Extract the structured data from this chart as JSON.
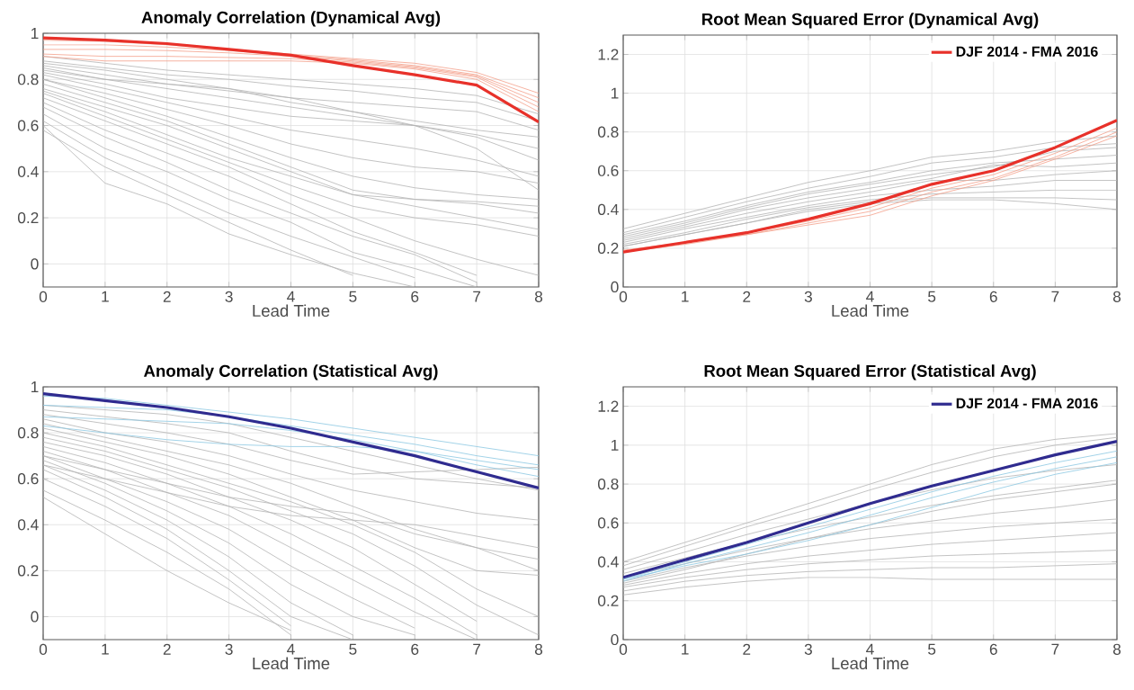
{
  "chart_data": [
    {
      "type": "line",
      "title": "Anomaly Correlation (Dynamical Avg)",
      "xlabel": "Lead Time",
      "x": [
        0,
        1,
        2,
        3,
        4,
        5,
        6,
        7,
        8
      ],
      "xlim": [
        0,
        8
      ],
      "xticks": [
        0,
        1,
        2,
        3,
        4,
        5,
        6,
        7,
        8
      ],
      "ylim": [
        -0.1,
        1
      ],
      "yticks": [
        0,
        0.2,
        0.4,
        0.6,
        0.8,
        1
      ],
      "grid": true,
      "legend": false,
      "series": [
        {
          "color": "#b4b4b4",
          "values": [
            0.9,
            0.87,
            0.84,
            0.82,
            0.8,
            0.78,
            0.76,
            0.73,
            0.65
          ]
        },
        {
          "color": "#b4b4b4",
          "values": [
            0.88,
            0.85,
            0.82,
            0.8,
            0.77,
            0.75,
            0.72,
            0.7,
            0.62
          ]
        },
        {
          "color": "#b4b4b4",
          "values": [
            0.86,
            0.82,
            0.78,
            0.75,
            0.72,
            0.7,
            0.68,
            0.66,
            0.58
          ]
        },
        {
          "color": "#b4b4b4",
          "values": [
            0.85,
            0.8,
            0.76,
            0.72,
            0.68,
            0.64,
            0.6,
            0.56,
            0.5
          ]
        },
        {
          "color": "#b4b4b4",
          "values": [
            0.83,
            0.78,
            0.72,
            0.68,
            0.64,
            0.62,
            0.6,
            0.55,
            0.45
          ]
        },
        {
          "color": "#b4b4b4",
          "values": [
            0.82,
            0.76,
            0.7,
            0.64,
            0.58,
            0.54,
            0.5,
            0.45,
            0.38
          ]
        },
        {
          "color": "#b4b4b4",
          "values": [
            0.8,
            0.74,
            0.67,
            0.6,
            0.52,
            0.46,
            0.42,
            0.4,
            0.35
          ]
        },
        {
          "color": "#b4b4b4",
          "values": [
            0.8,
            0.72,
            0.64,
            0.55,
            0.46,
            0.38,
            0.33,
            0.3,
            0.28
          ]
        },
        {
          "color": "#b4b4b4",
          "values": [
            0.78,
            0.7,
            0.62,
            0.52,
            0.42,
            0.32,
            0.28,
            0.27,
            0.25
          ]
        },
        {
          "color": "#b4b4b4",
          "values": [
            0.76,
            0.68,
            0.6,
            0.5,
            0.4,
            0.3,
            0.28,
            0.26,
            0.22
          ]
        },
        {
          "color": "#b4b4b4",
          "values": [
            0.75,
            0.66,
            0.56,
            0.46,
            0.38,
            0.3,
            0.25,
            0.2,
            0.15
          ]
        },
        {
          "color": "#b4b4b4",
          "values": [
            0.74,
            0.64,
            0.54,
            0.44,
            0.34,
            0.25,
            0.2,
            0.17,
            0.12
          ]
        },
        {
          "color": "#b4b4b4",
          "values": [
            0.72,
            0.62,
            0.52,
            0.42,
            0.3,
            0.2,
            0.1,
            0.02,
            -0.05
          ]
        },
        {
          "color": "#b4b4b4",
          "values": [
            0.7,
            0.58,
            0.48,
            0.38,
            0.26,
            0.14,
            0.05,
            -0.05,
            null
          ]
        },
        {
          "color": "#b4b4b4",
          "values": [
            0.68,
            0.55,
            0.44,
            0.32,
            0.22,
            0.12,
            0.04,
            -0.08,
            null
          ]
        },
        {
          "color": "#b4b4b4",
          "values": [
            0.65,
            0.5,
            0.4,
            0.28,
            0.18,
            0.05,
            -0.02,
            -0.1,
            null
          ]
        },
        {
          "color": "#b4b4b4",
          "values": [
            0.62,
            0.46,
            0.34,
            0.22,
            0.12,
            0.03,
            -0.06,
            null,
            null
          ]
        },
        {
          "color": "#b4b4b4",
          "values": [
            0.58,
            0.42,
            0.3,
            0.18,
            0.06,
            -0.05,
            null,
            null,
            null
          ]
        },
        {
          "color": "#b4b4b4",
          "values": [
            0.6,
            0.35,
            0.26,
            0.13,
            0.04,
            -0.04,
            -0.1,
            null,
            null
          ]
        },
        {
          "color": "#b4b4b4",
          "values": [
            0.84,
            0.8,
            0.78,
            0.76,
            0.72,
            0.66,
            0.6,
            0.5,
            0.32
          ]
        },
        {
          "color": "#b4b4b4",
          "values": [
            0.87,
            0.84,
            0.8,
            0.76,
            0.7,
            0.66,
            0.62,
            0.58,
            0.55
          ]
        },
        {
          "color": "#f4a08a",
          "values": [
            0.97,
            0.965,
            0.95,
            0.93,
            0.91,
            0.89,
            0.87,
            0.83,
            0.74
          ]
        },
        {
          "color": "#f4a08a",
          "values": [
            0.95,
            0.95,
            0.94,
            0.925,
            0.905,
            0.885,
            0.86,
            0.82,
            0.72
          ]
        },
        {
          "color": "#f4a08a",
          "values": [
            0.93,
            0.93,
            0.925,
            0.915,
            0.9,
            0.88,
            0.855,
            0.815,
            0.7
          ]
        },
        {
          "color": "#f4a08a",
          "values": [
            0.91,
            0.9,
            0.9,
            0.895,
            0.89,
            0.875,
            0.85,
            0.81,
            0.68
          ]
        },
        {
          "color": "#f4a08a",
          "values": [
            0.9,
            0.88,
            0.88,
            0.88,
            0.88,
            0.87,
            0.845,
            0.8,
            0.66
          ]
        },
        {
          "color": "#e8312a",
          "values": [
            0.98,
            0.97,
            0.955,
            0.93,
            0.905,
            0.86,
            0.82,
            0.775,
            0.615
          ]
        }
      ]
    },
    {
      "type": "line",
      "title": "Root Mean Squared Error (Dynamical Avg)",
      "xlabel": "Lead Time",
      "x": [
        0,
        1,
        2,
        3,
        4,
        5,
        6,
        7,
        8
      ],
      "xlim": [
        0,
        8
      ],
      "xticks": [
        0,
        1,
        2,
        3,
        4,
        5,
        6,
        7,
        8
      ],
      "ylim": [
        0,
        1.3
      ],
      "yticks": [
        0,
        0.2,
        0.4,
        0.6,
        0.8,
        1,
        1.2
      ],
      "grid": true,
      "legend": "top right",
      "series": [
        {
          "color": "#b4b4b4",
          "values": [
            0.3,
            0.38,
            0.46,
            0.54,
            0.6,
            0.67,
            0.7,
            0.75,
            0.78
          ]
        },
        {
          "color": "#b4b4b4",
          "values": [
            0.28,
            0.36,
            0.44,
            0.51,
            0.57,
            0.64,
            0.67,
            0.72,
            0.74
          ]
        },
        {
          "color": "#b4b4b4",
          "values": [
            0.27,
            0.34,
            0.42,
            0.49,
            0.54,
            0.6,
            0.64,
            0.66,
            0.68
          ]
        },
        {
          "color": "#b4b4b4",
          "values": [
            0.25,
            0.32,
            0.4,
            0.46,
            0.51,
            0.56,
            0.63,
            0.62,
            0.64
          ]
        },
        {
          "color": "#b4b4b4",
          "values": [
            0.24,
            0.31,
            0.38,
            0.44,
            0.49,
            0.55,
            0.55,
            0.58,
            0.6
          ]
        },
        {
          "color": "#b4b4b4",
          "values": [
            0.23,
            0.3,
            0.36,
            0.42,
            0.47,
            0.5,
            0.52,
            0.55,
            0.55
          ]
        },
        {
          "color": "#b4b4b4",
          "values": [
            0.22,
            0.28,
            0.35,
            0.41,
            0.45,
            0.48,
            0.49,
            0.5,
            0.5
          ]
        },
        {
          "color": "#b4b4b4",
          "values": [
            0.21,
            0.27,
            0.33,
            0.4,
            0.44,
            0.46,
            0.46,
            0.46,
            0.45
          ]
        },
        {
          "color": "#b4b4b4",
          "values": [
            0.21,
            0.27,
            0.33,
            0.39,
            0.43,
            0.45,
            0.45,
            0.43,
            0.4
          ]
        },
        {
          "color": "#b4b4b4",
          "values": [
            0.26,
            0.33,
            0.41,
            0.48,
            0.53,
            0.58,
            0.62,
            0.7,
            0.72
          ]
        },
        {
          "color": "#f4a08a",
          "values": [
            0.18,
            0.23,
            0.27,
            0.33,
            0.39,
            0.49,
            0.56,
            0.67,
            0.8
          ]
        },
        {
          "color": "#f4a08a",
          "values": [
            0.18,
            0.22,
            0.27,
            0.32,
            0.37,
            0.47,
            0.55,
            0.66,
            0.78
          ]
        },
        {
          "color": "#f4a08a",
          "values": [
            0.19,
            0.23,
            0.28,
            0.34,
            0.41,
            0.51,
            0.58,
            0.69,
            0.82
          ]
        },
        {
          "name": "DJF 2014 - FMA 2016",
          "color": "#e8312a",
          "values": [
            0.18,
            0.23,
            0.28,
            0.35,
            0.43,
            0.53,
            0.6,
            0.72,
            0.86
          ]
        }
      ]
    },
    {
      "type": "line",
      "title": "Anomaly Correlation (Statistical Avg)",
      "xlabel": "Lead Time",
      "x": [
        0,
        1,
        2,
        3,
        4,
        5,
        6,
        7,
        8
      ],
      "xlim": [
        0,
        8
      ],
      "xticks": [
        0,
        1,
        2,
        3,
        4,
        5,
        6,
        7,
        8
      ],
      "ylim": [
        -0.1,
        1
      ],
      "yticks": [
        0,
        0.2,
        0.4,
        0.6,
        0.8,
        1
      ],
      "grid": true,
      "legend": false,
      "series": [
        {
          "color": "#b4b4b4",
          "values": [
            0.92,
            0.9,
            0.88,
            0.84,
            0.78,
            0.72,
            0.66,
            0.6,
            0.55
          ]
        },
        {
          "color": "#b4b4b4",
          "values": [
            0.9,
            0.87,
            0.84,
            0.8,
            0.72,
            0.65,
            0.6,
            0.58,
            0.56
          ]
        },
        {
          "color": "#b4b4b4",
          "values": [
            0.88,
            0.84,
            0.8,
            0.75,
            0.68,
            0.62,
            0.63,
            0.64,
            0.65
          ]
        },
        {
          "color": "#b4b4b4",
          "values": [
            0.86,
            0.8,
            0.76,
            0.7,
            0.62,
            0.55,
            0.5,
            0.45,
            0.42
          ]
        },
        {
          "color": "#b4b4b4",
          "values": [
            0.84,
            0.78,
            0.72,
            0.66,
            0.58,
            0.48,
            0.38,
            0.3,
            0.25
          ]
        },
        {
          "color": "#b4b4b4",
          "values": [
            0.82,
            0.76,
            0.7,
            0.62,
            0.52,
            0.42,
            0.3,
            0.2,
            0.18
          ]
        },
        {
          "color": "#b4b4b4",
          "values": [
            0.8,
            0.74,
            0.66,
            0.58,
            0.5,
            0.4,
            0.28,
            0.12,
            0.0
          ]
        },
        {
          "color": "#b4b4b4",
          "values": [
            0.78,
            0.72,
            0.64,
            0.56,
            0.46,
            0.36,
            0.22,
            0.05,
            -0.08
          ]
        },
        {
          "color": "#b4b4b4",
          "values": [
            0.76,
            0.7,
            0.62,
            0.52,
            0.42,
            0.3,
            0.14,
            -0.02,
            null
          ]
        },
        {
          "color": "#b4b4b4",
          "values": [
            0.74,
            0.67,
            0.58,
            0.48,
            0.36,
            0.22,
            0.08,
            -0.08,
            null
          ]
        },
        {
          "color": "#b4b4b4",
          "values": [
            0.72,
            0.64,
            0.54,
            0.44,
            0.3,
            0.16,
            0.02,
            -0.1,
            null
          ]
        },
        {
          "color": "#b4b4b4",
          "values": [
            0.7,
            0.6,
            0.5,
            0.38,
            0.22,
            0.08,
            -0.05,
            null,
            null
          ]
        },
        {
          "color": "#b4b4b4",
          "values": [
            0.68,
            0.58,
            0.46,
            0.32,
            0.14,
            0.0,
            -0.08,
            null,
            null
          ]
        },
        {
          "color": "#b4b4b4",
          "values": [
            0.66,
            0.55,
            0.42,
            0.26,
            0.06,
            -0.08,
            null,
            null,
            null
          ]
        },
        {
          "color": "#b4b4b4",
          "values": [
            0.64,
            0.52,
            0.38,
            0.2,
            0.0,
            -0.1,
            null,
            null,
            null
          ]
        },
        {
          "color": "#b4b4b4",
          "values": [
            0.6,
            0.48,
            0.34,
            0.16,
            -0.04,
            null,
            null,
            null,
            null
          ]
        },
        {
          "color": "#b4b4b4",
          "values": [
            0.55,
            0.42,
            0.28,
            0.12,
            -0.08,
            null,
            null,
            null,
            null
          ]
        },
        {
          "color": "#b4b4b4",
          "values": [
            0.52,
            0.36,
            0.2,
            0.06,
            -0.06,
            null,
            null,
            null,
            null
          ]
        },
        {
          "color": "#b4b4b4",
          "values": [
            0.66,
            0.6,
            0.54,
            0.48,
            0.44,
            0.42,
            0.4,
            0.35,
            0.3
          ]
        },
        {
          "color": "#b4b4b4",
          "values": [
            0.7,
            0.64,
            0.58,
            0.52,
            0.48,
            0.45,
            0.36,
            0.3,
            0.2
          ]
        },
        {
          "color": "#8cc8e2",
          "values": [
            0.96,
            0.95,
            0.92,
            0.89,
            0.86,
            0.82,
            0.78,
            0.74,
            0.7
          ]
        },
        {
          "color": "#8cc8e2",
          "values": [
            0.92,
            0.91,
            0.9,
            0.87,
            0.83,
            0.79,
            0.75,
            0.7,
            0.66
          ]
        },
        {
          "color": "#8cc8e2",
          "values": [
            0.87,
            0.86,
            0.85,
            0.84,
            0.81,
            0.77,
            0.72,
            0.66,
            0.61
          ]
        },
        {
          "color": "#8cc8e2",
          "values": [
            0.83,
            0.8,
            0.77,
            0.75,
            0.74,
            0.74,
            0.72,
            0.68,
            0.64
          ]
        },
        {
          "color": "#2f2b8f",
          "values": [
            0.97,
            0.94,
            0.91,
            0.87,
            0.82,
            0.76,
            0.7,
            0.63,
            0.56
          ]
        }
      ]
    },
    {
      "type": "line",
      "title": "Root Mean Squared Error (Statistical Avg)",
      "xlabel": "Lead Time",
      "x": [
        0,
        1,
        2,
        3,
        4,
        5,
        6,
        7,
        8
      ],
      "xlim": [
        0,
        8
      ],
      "xticks": [
        0,
        1,
        2,
        3,
        4,
        5,
        6,
        7,
        8
      ],
      "ylim": [
        0,
        1.3
      ],
      "yticks": [
        0,
        0.2,
        0.4,
        0.6,
        0.8,
        1,
        1.2
      ],
      "grid": true,
      "legend": "top right",
      "series": [
        {
          "color": "#b4b4b4",
          "values": [
            0.4,
            0.5,
            0.6,
            0.7,
            0.8,
            0.9,
            0.98,
            1.03,
            1.06
          ]
        },
        {
          "color": "#b4b4b4",
          "values": [
            0.38,
            0.48,
            0.58,
            0.67,
            0.77,
            0.86,
            0.94,
            1.0,
            1.04
          ]
        },
        {
          "color": "#b4b4b4",
          "values": [
            0.36,
            0.45,
            0.54,
            0.62,
            0.7,
            0.77,
            0.83,
            0.87,
            0.9
          ]
        },
        {
          "color": "#b4b4b4",
          "values": [
            0.34,
            0.42,
            0.5,
            0.57,
            0.63,
            0.69,
            0.74,
            0.78,
            0.82
          ]
        },
        {
          "color": "#b4b4b4",
          "values": [
            0.32,
            0.39,
            0.46,
            0.52,
            0.57,
            0.61,
            0.65,
            0.68,
            0.72
          ]
        },
        {
          "color": "#b4b4b4",
          "values": [
            0.3,
            0.37,
            0.43,
            0.48,
            0.52,
            0.55,
            0.58,
            0.6,
            0.62
          ]
        },
        {
          "color": "#b4b4b4",
          "values": [
            0.28,
            0.34,
            0.39,
            0.43,
            0.46,
            0.49,
            0.51,
            0.53,
            0.55
          ]
        },
        {
          "color": "#b4b4b4",
          "values": [
            0.27,
            0.32,
            0.36,
            0.39,
            0.41,
            0.43,
            0.44,
            0.45,
            0.46
          ]
        },
        {
          "color": "#b4b4b4",
          "values": [
            0.25,
            0.3,
            0.33,
            0.35,
            0.36,
            0.37,
            0.37,
            0.38,
            0.39
          ]
        },
        {
          "color": "#b4b4b4",
          "values": [
            0.23,
            0.27,
            0.3,
            0.32,
            0.32,
            0.31,
            0.31,
            0.31,
            0.31
          ]
        },
        {
          "color": "#b4b4b4",
          "values": [
            0.29,
            0.36,
            0.44,
            0.52,
            0.59,
            0.66,
            0.72,
            0.76,
            0.8
          ]
        },
        {
          "color": "#8cc8e2",
          "values": [
            0.31,
            0.4,
            0.49,
            0.58,
            0.67,
            0.76,
            0.84,
            0.91,
            0.97
          ]
        },
        {
          "color": "#8cc8e2",
          "values": [
            0.3,
            0.39,
            0.47,
            0.55,
            0.64,
            0.73,
            0.81,
            0.88,
            0.94
          ]
        },
        {
          "color": "#8cc8e2",
          "values": [
            0.31,
            0.38,
            0.44,
            0.51,
            0.59,
            0.68,
            0.77,
            0.85,
            0.91
          ]
        },
        {
          "name": "DJF 2014 - FMA 2016",
          "color": "#2f2b8f",
          "values": [
            0.32,
            0.41,
            0.5,
            0.6,
            0.7,
            0.79,
            0.87,
            0.95,
            1.02
          ]
        }
      ]
    }
  ]
}
